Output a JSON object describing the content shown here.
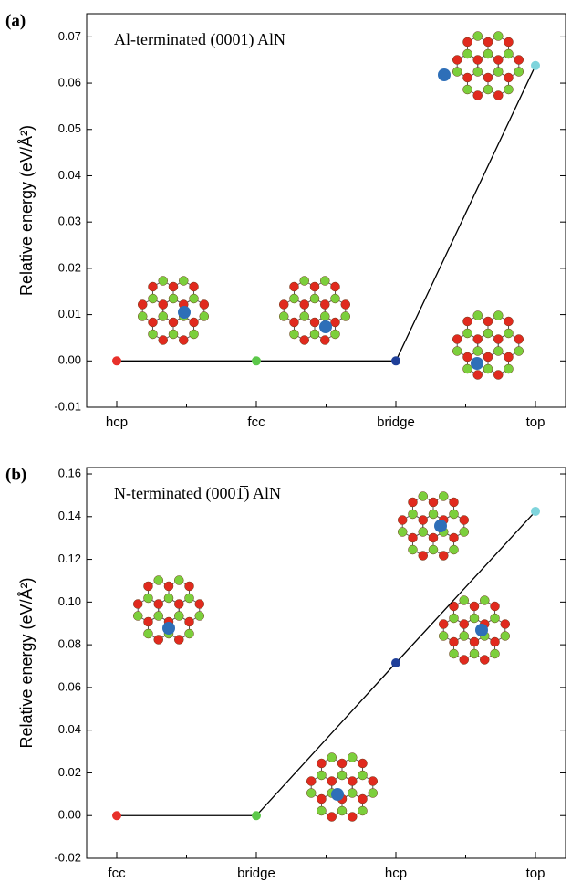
{
  "chart_data": [
    {
      "type": "line",
      "panel_label": "(a)",
      "title": "Al-terminated (0001) AlN",
      "ylabel": "Relative energy (eV/Å²)",
      "categories": [
        "hcp",
        "fcc",
        "bridge",
        "top"
      ],
      "series": [
        {
          "color": "#000000",
          "point_colors": [
            "#e8302a",
            "#5cc84a",
            "#1f3f99",
            "#7fd4dc"
          ],
          "values": [
            0,
            0,
            0,
            0.0638
          ]
        }
      ],
      "ylim": [
        -0.01,
        0.075
      ],
      "yticks": [
        -0.01,
        {
          "value": 0,
          "label": "0.00"
        },
        0.01,
        0.02,
        0.03,
        0.04,
        0.05,
        0.06,
        0.07
      ]
    },
    {
      "type": "line",
      "panel_label": "(b)",
      "title": "N-terminated (0001̅) AlN",
      "ylabel": "Relative energy (eV/Å²)",
      "categories": [
        "fcc",
        "bridge",
        "hcp",
        "top"
      ],
      "series": [
        {
          "color": "#000000",
          "point_colors": [
            "#e8302a",
            "#5cc84a",
            "#1f3f99",
            "#7fd4dc"
          ],
          "values": [
            0,
            0,
            0.0715,
            0.1425
          ]
        }
      ],
      "ylim": [
        -0.02,
        0.163
      ],
      "yticks": [
        -0.02,
        {
          "value": 0,
          "label": "0.00"
        },
        0.02,
        0.04,
        0.06,
        0.08,
        {
          "value": 0.1,
          "label": "0.10"
        },
        0.12,
        0.14,
        0.16
      ]
    }
  ]
}
